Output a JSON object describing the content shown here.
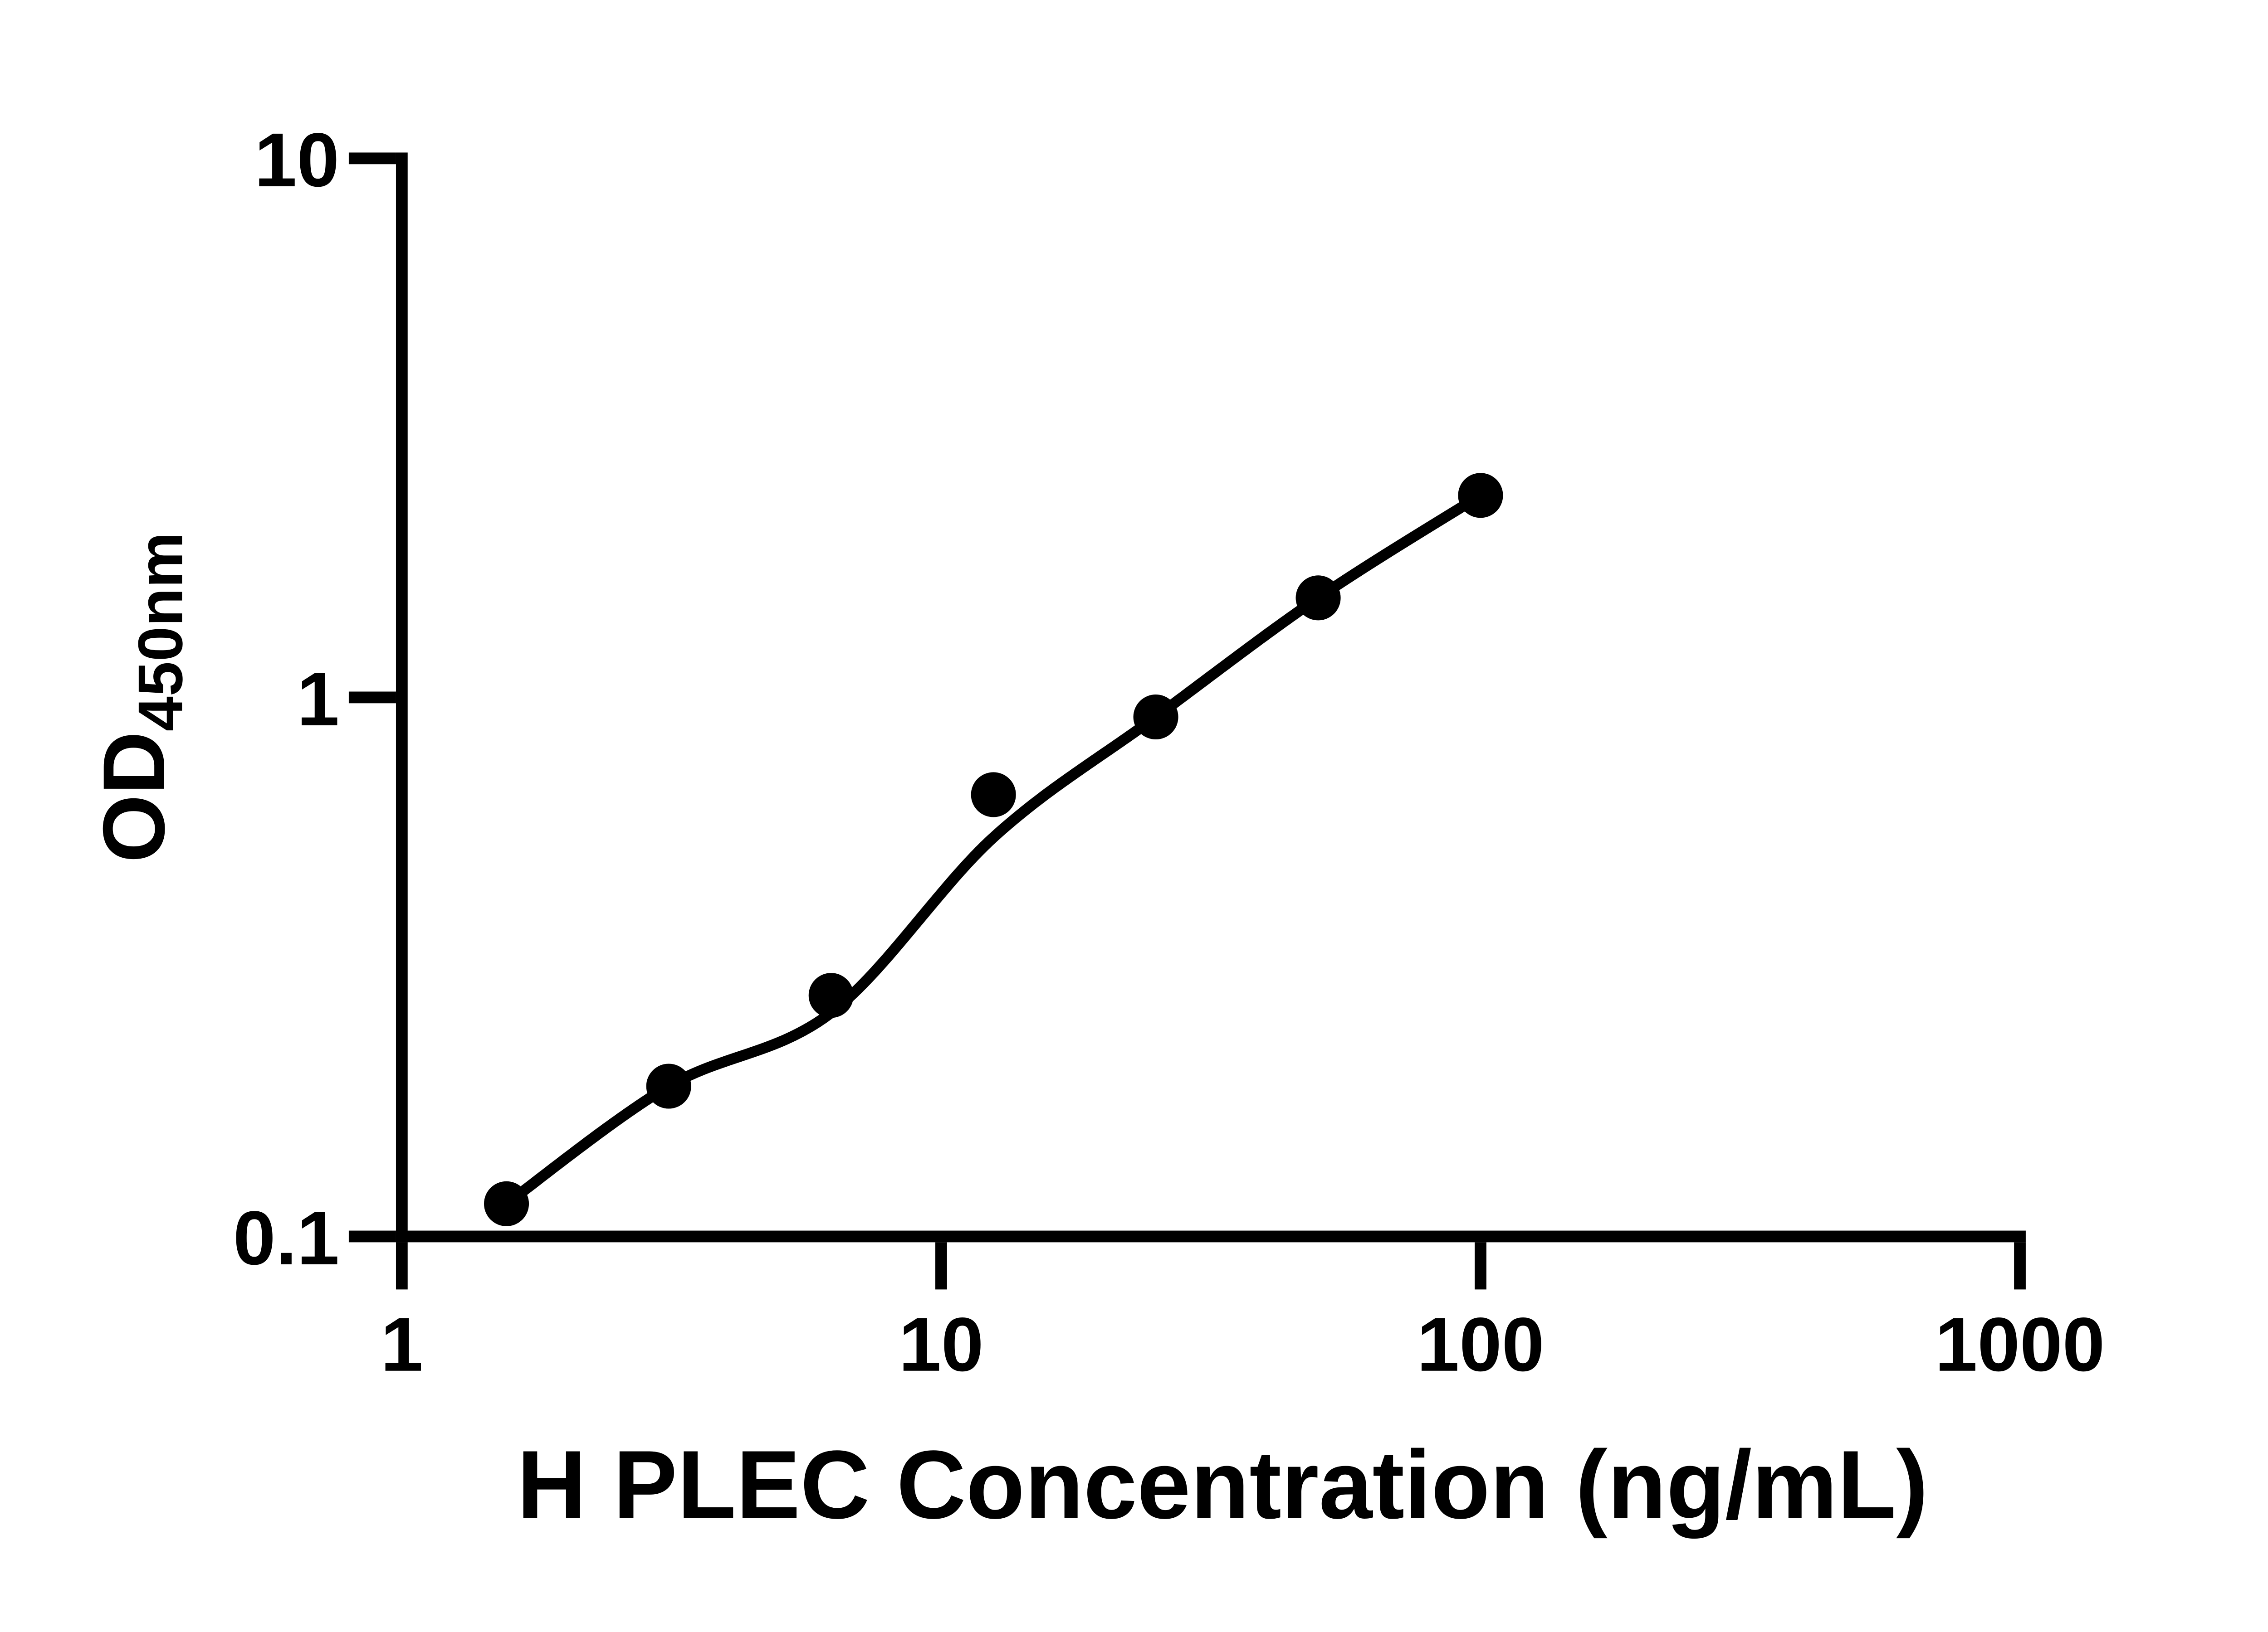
{
  "page": {
    "background": "#ffffff",
    "ink_color": "#000000"
  },
  "chart_data": {
    "type": "scatter",
    "xlabel": "H PLEC Concentration (ng/mL)",
    "ylabel_main": "OD",
    "ylabel_sub": "450nm",
    "x_scale": "log10",
    "y_scale": "log10",
    "xlim": [
      1,
      1000
    ],
    "ylim": [
      0.1,
      10
    ],
    "x_ticks": [
      1,
      10,
      100,
      1000
    ],
    "y_ticks": [
      0.1,
      1,
      10
    ],
    "grid": false,
    "legend": null,
    "marker_shape": "filled-circle",
    "marker_color": "#000000",
    "line_color": "#000000",
    "axis_color": "#000000",
    "points": [
      {
        "x": 1.563,
        "y": 0.115
      },
      {
        "x": 3.125,
        "y": 0.19
      },
      {
        "x": 6.25,
        "y": 0.28
      },
      {
        "x": 12.5,
        "y": 0.66
      },
      {
        "x": 25,
        "y": 0.92
      },
      {
        "x": 50,
        "y": 1.53
      },
      {
        "x": 100,
        "y": 2.37
      }
    ],
    "fit_curve": [
      {
        "x": 1.563,
        "y": 0.115
      },
      {
        "x": 3.125,
        "y": 0.19
      },
      {
        "x": 6.25,
        "y": 0.26
      },
      {
        "x": 12.5,
        "y": 0.55
      },
      {
        "x": 25,
        "y": 0.92
      },
      {
        "x": 50,
        "y": 1.53
      },
      {
        "x": 100,
        "y": 2.37
      }
    ]
  }
}
